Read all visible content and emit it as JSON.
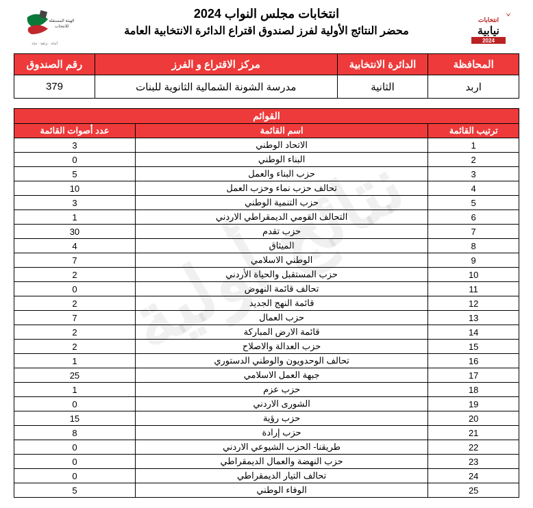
{
  "watermark": "نتائج أولية",
  "header": {
    "title_main": "انتخابات مجلس النواب 2024",
    "title_sub": "محضر النتائج الأولية لفرز لصندوق اقتراع الدائرة الانتخابية العامة"
  },
  "info_table": {
    "headers": {
      "governorate": "المحافظة",
      "district": "الدائرة الانتخابية",
      "center": "مركز الاقتراع و الفرز",
      "box": "رقم الصندوق"
    },
    "values": {
      "governorate": "اربد",
      "district": "الثانية",
      "center": "مدرسة الشونة الشمالية الثانوية للبنات",
      "box": "379"
    }
  },
  "lists_table": {
    "super_header": "القوائم",
    "col_headers": {
      "rank": "ترتيب القائمة",
      "name": "اسم القائمة",
      "votes": "عدد أصوات القائمة"
    },
    "rows": [
      {
        "rank": "1",
        "name": "الاتحاد الوطني",
        "votes": "3"
      },
      {
        "rank": "2",
        "name": "البناء الوطني",
        "votes": "0"
      },
      {
        "rank": "3",
        "name": "حزب البناء والعمل",
        "votes": "5"
      },
      {
        "rank": "4",
        "name": "تحالف حزب نماء وحزب العمل",
        "votes": "10"
      },
      {
        "rank": "5",
        "name": "حزب التنمية الوطني",
        "votes": "3"
      },
      {
        "rank": "6",
        "name": "التحالف القومي الديمقراطي الاردني",
        "votes": "1"
      },
      {
        "rank": "7",
        "name": "حزب تقدم",
        "votes": "30"
      },
      {
        "rank": "8",
        "name": "الميثاق",
        "votes": "4"
      },
      {
        "rank": "9",
        "name": "الوطني الاسلامي",
        "votes": "7"
      },
      {
        "rank": "10",
        "name": "حزب المستقبل والحياة الأردني",
        "votes": "2"
      },
      {
        "rank": "11",
        "name": "تحالف قائمة النهوض",
        "votes": "0"
      },
      {
        "rank": "12",
        "name": "قائمة النهج الجديد",
        "votes": "2"
      },
      {
        "rank": "13",
        "name": "حزب العمال",
        "votes": "7"
      },
      {
        "rank": "14",
        "name": "قائمة الارض المباركة",
        "votes": "2"
      },
      {
        "rank": "15",
        "name": "حزب العدالة والاصلاح",
        "votes": "2"
      },
      {
        "rank": "16",
        "name": "تحالف الوحدويون والوطني الدستوري",
        "votes": "1"
      },
      {
        "rank": "17",
        "name": "جبهة العمل الاسلامي",
        "votes": "25"
      },
      {
        "rank": "18",
        "name": "حزب عزم",
        "votes": "1"
      },
      {
        "rank": "19",
        "name": "الشورى الاردني",
        "votes": "0"
      },
      {
        "rank": "20",
        "name": "حزب رؤية",
        "votes": "15"
      },
      {
        "rank": "21",
        "name": "حزب إرادة",
        "votes": "8"
      },
      {
        "rank": "22",
        "name": "طريقنا- الحزب الشيوعي الاردني",
        "votes": "0"
      },
      {
        "rank": "23",
        "name": "حزب النهضة والعمال الديمقراطي",
        "votes": "0"
      },
      {
        "rank": "24",
        "name": "تحالف التيار الديمقراطي",
        "votes": "0"
      },
      {
        "rank": "25",
        "name": "الوفاء الوطني",
        "votes": "5"
      }
    ]
  },
  "colors": {
    "header_bg": "#ee3a3a",
    "header_fg": "#ffffff",
    "border": "#000000",
    "page_bg": "#ffffff",
    "watermark": "rgba(0,0,0,0.06)"
  }
}
